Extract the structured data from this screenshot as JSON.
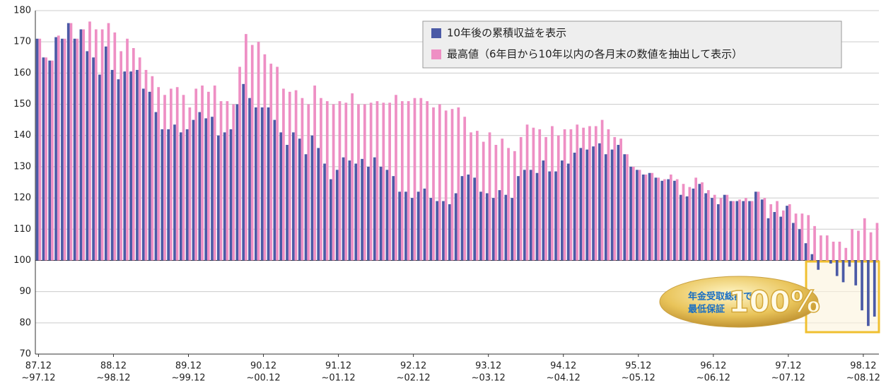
{
  "chart_data": {
    "type": "bar",
    "categories": [
      "87.12",
      null,
      null,
      null,
      null,
      null,
      null,
      null,
      null,
      null,
      null,
      null,
      "88.12",
      null,
      null,
      null,
      null,
      null,
      null,
      null,
      null,
      null,
      null,
      null,
      "89.12",
      null,
      null,
      null,
      null,
      null,
      null,
      null,
      null,
      null,
      null,
      null,
      "90.12",
      null,
      null,
      null,
      null,
      null,
      null,
      null,
      null,
      null,
      null,
      null,
      "91.12",
      null,
      null,
      null,
      null,
      null,
      null,
      null,
      null,
      null,
      null,
      null,
      "92.12",
      null,
      null,
      null,
      null,
      null,
      null,
      null,
      null,
      null,
      null,
      null,
      "93.12",
      null,
      null,
      null,
      null,
      null,
      null,
      null,
      null,
      null,
      null,
      null,
      "94.12",
      null,
      null,
      null,
      null,
      null,
      null,
      null,
      null,
      null,
      null,
      null,
      "95.12",
      null,
      null,
      null,
      null,
      null,
      null,
      null,
      null,
      null,
      null,
      null,
      "96.12",
      null,
      null,
      null,
      null,
      null,
      null,
      null,
      null,
      null,
      null,
      null,
      "97.12",
      null,
      null,
      null,
      null,
      null,
      null,
      null,
      null,
      null,
      null,
      null,
      "98.12",
      null,
      null
    ],
    "categories_end": [
      "~97.12",
      null,
      null,
      null,
      null,
      null,
      null,
      null,
      null,
      null,
      null,
      null,
      "~98.12",
      null,
      null,
      null,
      null,
      null,
      null,
      null,
      null,
      null,
      null,
      null,
      "~99.12",
      null,
      null,
      null,
      null,
      null,
      null,
      null,
      null,
      null,
      null,
      null,
      "~00.12",
      null,
      null,
      null,
      null,
      null,
      null,
      null,
      null,
      null,
      null,
      null,
      "~01.12",
      null,
      null,
      null,
      null,
      null,
      null,
      null,
      null,
      null,
      null,
      null,
      "~02.12",
      null,
      null,
      null,
      null,
      null,
      null,
      null,
      null,
      null,
      null,
      null,
      "~03.12",
      null,
      null,
      null,
      null,
      null,
      null,
      null,
      null,
      null,
      null,
      null,
      "~04.12",
      null,
      null,
      null,
      null,
      null,
      null,
      null,
      null,
      null,
      null,
      null,
      "~05.12",
      null,
      null,
      null,
      null,
      null,
      null,
      null,
      null,
      null,
      null,
      null,
      "~06.12",
      null,
      null,
      null,
      null,
      null,
      null,
      null,
      null,
      null,
      null,
      null,
      "~07.12",
      null,
      null,
      null,
      null,
      null,
      null,
      null,
      null,
      null,
      null,
      null,
      "~08.12",
      null,
      null
    ],
    "series": [
      {
        "name": "10年後の累積収益を表示",
        "color": "#4b5aa6",
        "values": [
          171,
          165,
          164,
          171.5,
          171,
          176,
          171,
          174,
          167,
          165,
          159.5,
          168.5,
          161,
          158,
          160.5,
          160.5,
          161,
          155,
          154,
          147.5,
          142,
          142,
          143.5,
          141,
          142,
          145,
          147.5,
          145.5,
          146,
          140,
          141,
          142,
          150,
          156.5,
          152,
          149,
          149,
          149,
          145,
          141,
          137,
          141,
          139,
          134,
          140,
          136,
          131,
          126,
          129,
          133,
          132,
          131,
          132.5,
          130,
          133,
          130,
          129,
          127,
          122,
          122,
          120,
          122,
          123,
          120,
          119,
          119,
          118,
          121.5,
          127,
          127.5,
          126.5,
          122,
          121.5,
          120,
          122.5,
          121,
          120,
          127,
          129,
          129,
          128,
          132,
          128.5,
          128.5,
          132,
          131,
          134.5,
          136,
          135.5,
          136.5,
          137.5,
          134,
          135.5,
          137,
          134,
          130,
          129,
          127.5,
          128,
          126.5,
          125.5,
          126,
          125.5,
          121,
          120.5,
          123,
          124.5,
          121.5,
          120,
          118,
          121,
          119,
          119,
          119,
          119,
          122,
          119.5,
          113.5,
          115.5,
          114,
          117.5,
          112,
          110,
          105.5,
          102,
          97,
          100,
          99,
          95,
          93,
          98,
          92,
          84,
          79,
          82
        ]
      },
      {
        "name": "最高値（6年目から10年以内の各月末の数値を抽出して表示）",
        "color": "#ee8fc4",
        "values": [
          171,
          165,
          164,
          172,
          171,
          176,
          171,
          174,
          176.5,
          174,
          174,
          176,
          173,
          167,
          171,
          168,
          165,
          161,
          159,
          155.5,
          153,
          155,
          155.5,
          153,
          149,
          155,
          156,
          154,
          156,
          151,
          151,
          150,
          162,
          172.5,
          169,
          170,
          166,
          163,
          162,
          155,
          154,
          154.5,
          152,
          150,
          156,
          152,
          151,
          150,
          151,
          150.5,
          153.5,
          150,
          150,
          150.5,
          151,
          150.5,
          150.5,
          153,
          151,
          151,
          152,
          152,
          151,
          149,
          150,
          148,
          148.5,
          149,
          146,
          141,
          141.5,
          138,
          141,
          137,
          139,
          136,
          135,
          139.5,
          143.5,
          142.5,
          142,
          139.5,
          143,
          140,
          142,
          142,
          143.5,
          142.5,
          143,
          143,
          145,
          142,
          139.5,
          139,
          134,
          130,
          129,
          127.5,
          128,
          126.5,
          126,
          127.5,
          126,
          124.5,
          123.5,
          126.5,
          125,
          122.5,
          121,
          120,
          121,
          119,
          119.5,
          120,
          119,
          122,
          120,
          118,
          119,
          116,
          118,
          115,
          115,
          114.5,
          111,
          108,
          108,
          106,
          106,
          104,
          110,
          109.5,
          113.5,
          109,
          112
        ]
      }
    ],
    "ylim": [
      70,
      180
    ],
    "yticks": [
      70,
      80,
      90,
      100,
      110,
      120,
      130,
      140,
      150,
      160,
      170,
      180
    ],
    "grid": true,
    "baseline": 100,
    "badge": {
      "line1": "年金受取総額で",
      "line2": "最低保証",
      "number": "100%"
    }
  }
}
